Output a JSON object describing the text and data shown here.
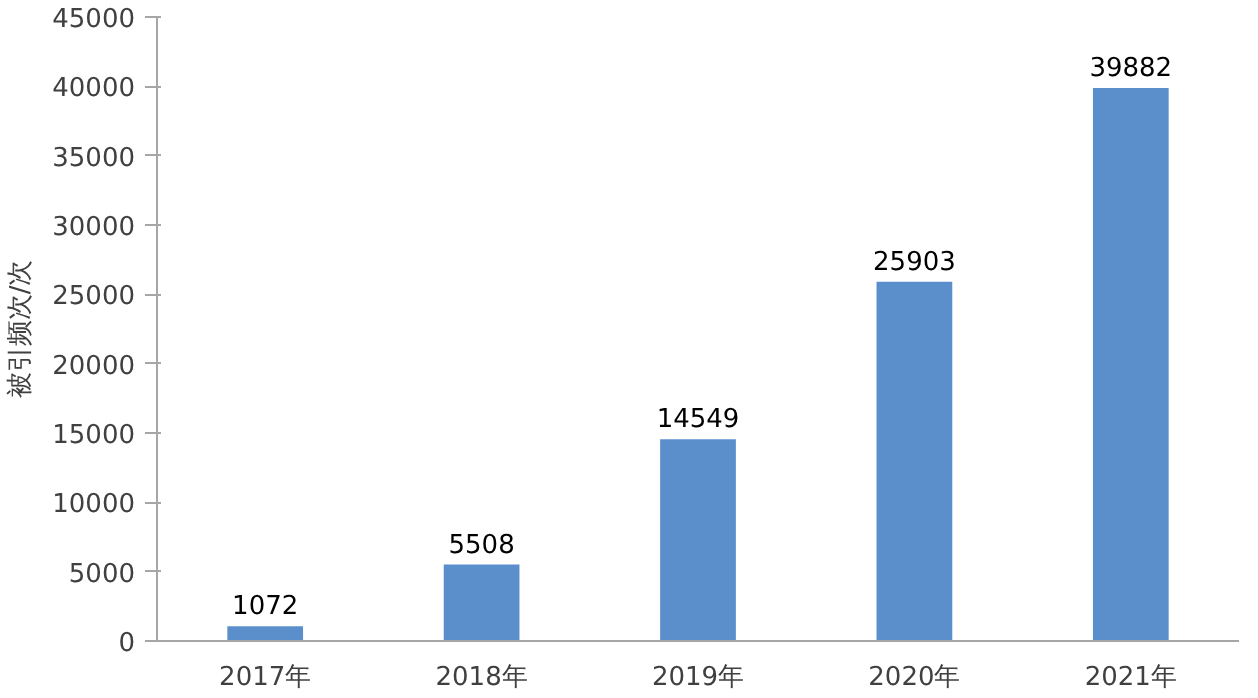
{
  "chart_data": {
    "type": "bar",
    "ylabel": "被引频次/次",
    "categories": [
      "2017年",
      "2018年",
      "2019年",
      "2020年",
      "2021年"
    ],
    "values": [
      1072,
      5508,
      14549,
      25903,
      39882
    ],
    "color": "#5b8fcc",
    "ylim": [
      0,
      45000
    ],
    "yticks": [
      0,
      5000,
      10000,
      15000,
      20000,
      25000,
      30000,
      35000,
      40000,
      45000
    ],
    "grid": false,
    "data_labels": true
  }
}
